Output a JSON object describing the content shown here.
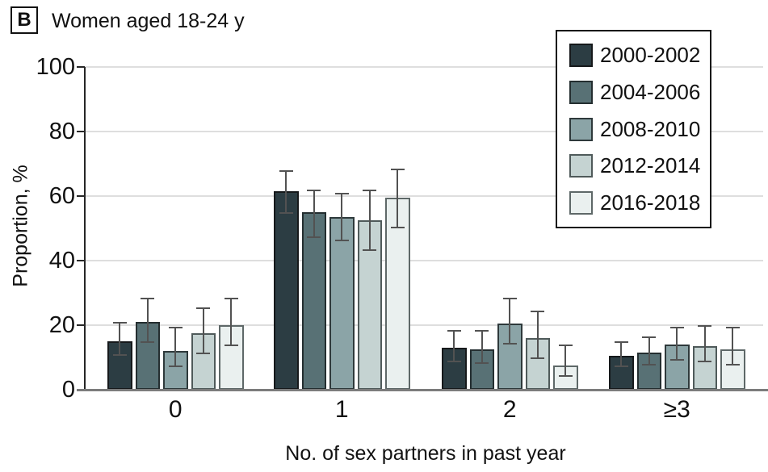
{
  "panel": {
    "label": "B",
    "title": "Women aged 18-24 y"
  },
  "chart_data": {
    "type": "bar",
    "title": "Women aged 18-24 y",
    "panel_label": "B",
    "xlabel": "No. of sex partners in past year",
    "ylabel": "Proportion, %",
    "ylim": [
      0,
      100
    ],
    "yticks": [
      0,
      20,
      40,
      60,
      80,
      100
    ],
    "grid": true,
    "legend_position": "top-right",
    "error_bars": "95% CI whiskers with caps",
    "categories": [
      "0",
      "1",
      "2",
      "≥3"
    ],
    "series": [
      {
        "name": "2000-2002",
        "color": "#2c3d43",
        "edge": "#16191b",
        "values": [
          15,
          61.5,
          13,
          10.5
        ],
        "ci_low": [
          10.5,
          54.5,
          8.5,
          7
        ],
        "ci_high": [
          21,
          68,
          18.5,
          15
        ]
      },
      {
        "name": "2004-2006",
        "color": "#587175",
        "edge": "#242e30",
        "values": [
          21,
          55,
          12.5,
          11.5
        ],
        "ci_low": [
          14.5,
          47,
          8,
          7.5
        ],
        "ci_high": [
          28.5,
          62,
          18.5,
          16.5
        ]
      },
      {
        "name": "2008-2010",
        "color": "#8ba4a7",
        "edge": "#2e393b",
        "values": [
          12,
          53.5,
          20.5,
          14
        ],
        "ci_low": [
          7,
          46,
          14,
          9
        ],
        "ci_high": [
          19.5,
          61,
          28.5,
          19.5
        ]
      },
      {
        "name": "2012-2014",
        "color": "#c5d3d2",
        "edge": "#4f5a5a",
        "values": [
          17.5,
          52.5,
          16,
          13.5
        ],
        "ci_low": [
          11,
          43,
          9.5,
          8.5
        ],
        "ci_high": [
          25.5,
          62,
          24.5,
          20
        ]
      },
      {
        "name": "2016-2018",
        "color": "#eaf0ef",
        "edge": "#5e6868",
        "values": [
          20,
          59.5,
          7.5,
          12.5
        ],
        "ci_low": [
          13.5,
          50,
          4,
          7.5
        ],
        "ci_high": [
          28.5,
          68.5,
          14,
          19.5
        ]
      }
    ],
    "colors": {
      "grid": "#dedede",
      "x_axis": "#7c7c7c",
      "y_axis": "#262626",
      "whisker": "#525252",
      "text": "#111111"
    }
  }
}
